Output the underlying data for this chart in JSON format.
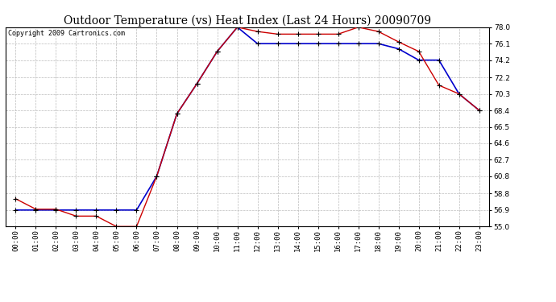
{
  "title": "Outdoor Temperature (vs) Heat Index (Last 24 Hours) 20090709",
  "copyright": "Copyright 2009 Cartronics.com",
  "hours": [
    "00:00",
    "01:00",
    "02:00",
    "03:00",
    "04:00",
    "05:00",
    "06:00",
    "07:00",
    "08:00",
    "09:00",
    "10:00",
    "11:00",
    "12:00",
    "13:00",
    "14:00",
    "15:00",
    "16:00",
    "17:00",
    "18:00",
    "19:00",
    "20:00",
    "21:00",
    "22:00",
    "23:00"
  ],
  "temp": [
    58.2,
    57.0,
    57.0,
    56.2,
    56.2,
    55.0,
    55.0,
    60.8,
    68.0,
    71.5,
    75.2,
    78.0,
    77.5,
    77.2,
    77.2,
    77.2,
    77.2,
    78.0,
    77.5,
    76.3,
    75.2,
    71.3,
    70.3,
    68.4
  ],
  "heat_index": [
    56.9,
    56.9,
    56.9,
    56.9,
    56.9,
    56.9,
    56.9,
    60.8,
    68.0,
    71.5,
    75.2,
    78.0,
    76.1,
    76.1,
    76.1,
    76.1,
    76.1,
    76.1,
    76.1,
    75.5,
    74.2,
    74.2,
    70.3,
    68.4
  ],
  "temp_color": "#cc0000",
  "heat_index_color": "#0000cc",
  "bg_color": "#ffffff",
  "grid_color": "#bbbbbb",
  "ylim": [
    55.0,
    78.0
  ],
  "yticks": [
    55.0,
    56.9,
    58.8,
    60.8,
    62.7,
    64.6,
    66.5,
    68.4,
    70.3,
    72.2,
    74.2,
    76.1,
    78.0
  ],
  "title_fontsize": 10,
  "copyright_fontsize": 6,
  "tick_fontsize": 6.5,
  "marker_size": 4
}
